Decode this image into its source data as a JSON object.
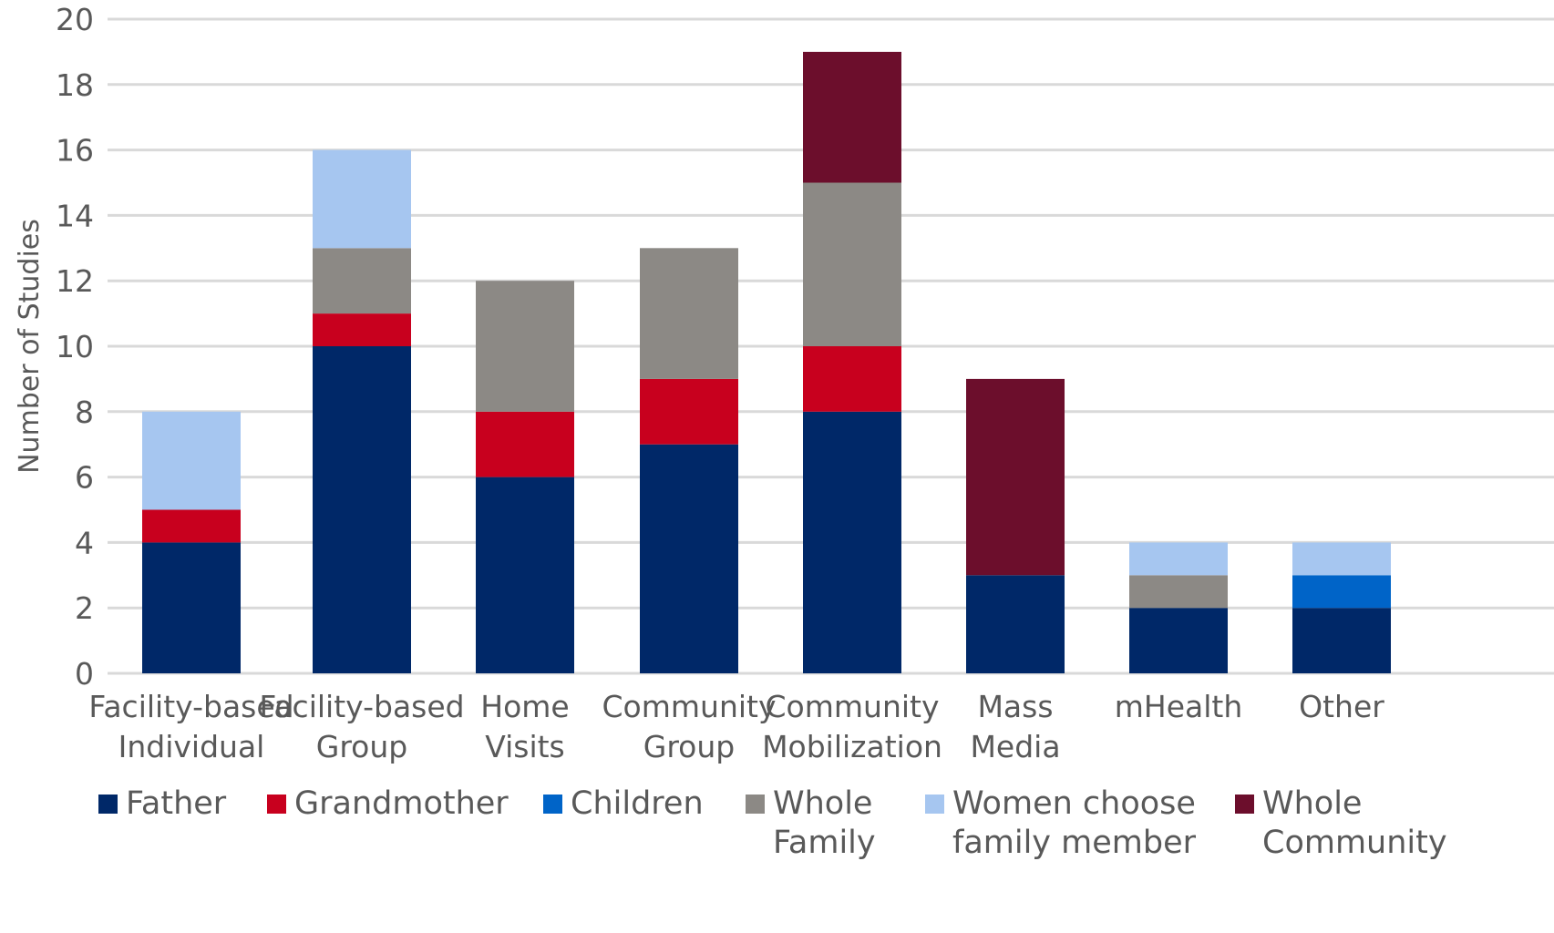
{
  "chart_data": {
    "type": "bar",
    "stacked": true,
    "title": "",
    "xlabel": "",
    "ylabel": "Number of Studies",
    "ylim": [
      0,
      20
    ],
    "yticks": [
      "0",
      "2",
      "4",
      "6",
      "8",
      "10",
      "12",
      "14",
      "16",
      "18",
      "20"
    ],
    "grid": true,
    "legend_position": "bottom",
    "categories": [
      [
        "Facility-based",
        "Individual"
      ],
      [
        "Facility-based",
        "Group"
      ],
      [
        "Home",
        "Visits"
      ],
      [
        "Community",
        "Group"
      ],
      [
        "Community",
        "Mobilization"
      ],
      [
        "Mass",
        "Media"
      ],
      [
        "mHealth"
      ],
      [
        "Other"
      ]
    ],
    "series": [
      {
        "name": [
          "Father"
        ],
        "color": "#002868",
        "values": [
          4,
          10,
          6,
          7,
          8,
          3,
          2,
          2
        ]
      },
      {
        "name": [
          "Grandmother"
        ],
        "color": "#c8001e",
        "values": [
          1,
          1,
          2,
          2,
          2,
          0,
          0,
          0
        ]
      },
      {
        "name": [
          "Children"
        ],
        "color": "#0064c8",
        "values": [
          0,
          0,
          0,
          0,
          0,
          0,
          0,
          1
        ]
      },
      {
        "name": [
          "Whole",
          "Family"
        ],
        "color": "#8c8985",
        "values": [
          0,
          2,
          4,
          4,
          5,
          0,
          1,
          0
        ]
      },
      {
        "name": [
          "Women choose",
          "family member"
        ],
        "color": "#a6c6f0",
        "values": [
          3,
          3,
          0,
          0,
          0,
          0,
          1,
          1
        ]
      },
      {
        "name": [
          "Whole",
          "Community"
        ],
        "color": "#6c0e2c",
        "values": [
          0,
          0,
          0,
          0,
          4,
          6,
          0,
          0
        ]
      }
    ]
  }
}
